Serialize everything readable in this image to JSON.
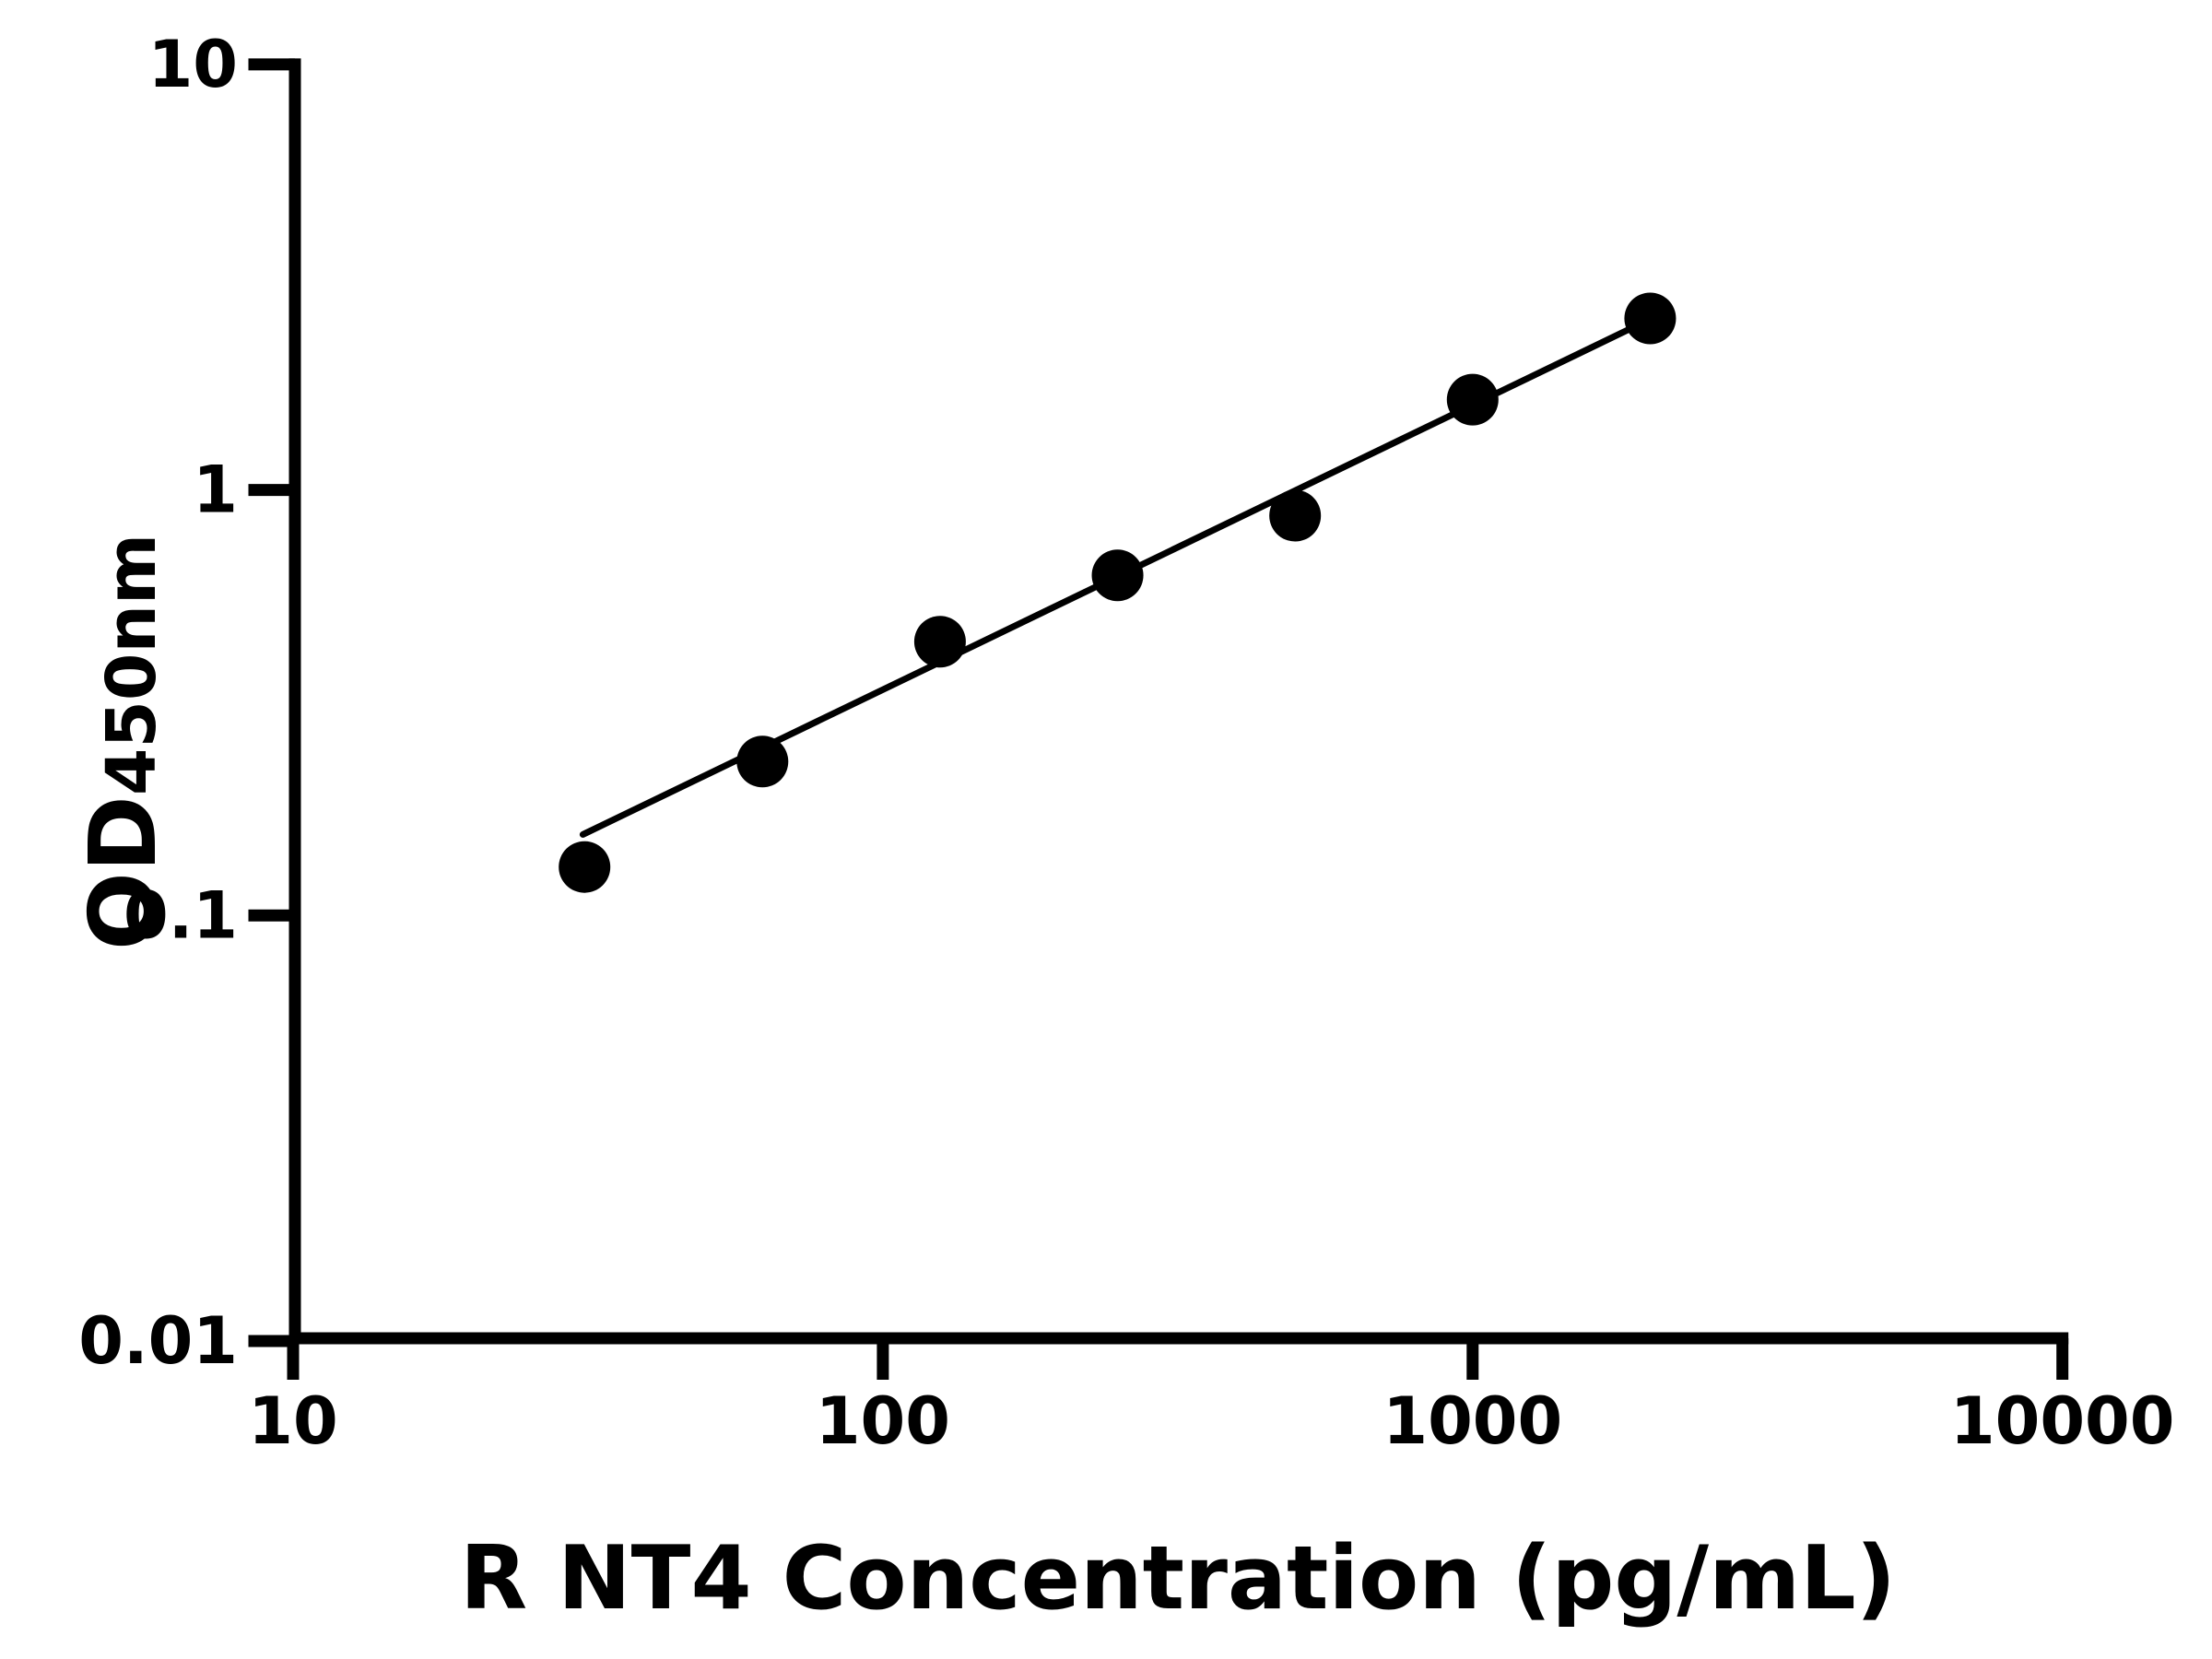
{
  "figure": {
    "background_color": "#ffffff",
    "foreground_color": "#000000"
  },
  "chart_data": {
    "type": "scatter",
    "title": "",
    "xlabel": "R NT4 Concentration (pg/mL)",
    "ylabel": "OD",
    "ylabel_sub": "450nm",
    "x_scale": "log",
    "y_scale": "log",
    "xlim": [
      10,
      10000
    ],
    "ylim": [
      0.01,
      10
    ],
    "grid": false,
    "legend": "none",
    "x_ticks": [
      {
        "value": 10,
        "label": "10"
      },
      {
        "value": 100,
        "label": "100"
      },
      {
        "value": 1000,
        "label": "1000"
      },
      {
        "value": 10000,
        "label": "10000"
      }
    ],
    "y_ticks": [
      {
        "value": 10,
        "label": "10"
      },
      {
        "value": 1,
        "label": "1"
      },
      {
        "value": 0.1,
        "label": "0.1"
      },
      {
        "value": 0.01,
        "label": "0.01"
      }
    ],
    "series": [
      {
        "name": "standard-curve-points",
        "marker": "filled-circle",
        "color": "#000000",
        "points": [
          {
            "x": 31.2,
            "y": 0.13
          },
          {
            "x": 62.5,
            "y": 0.23
          },
          {
            "x": 125,
            "y": 0.44
          },
          {
            "x": 250,
            "y": 0.63
          },
          {
            "x": 500,
            "y": 0.87
          },
          {
            "x": 1000,
            "y": 1.63
          },
          {
            "x": 2000,
            "y": 2.53
          }
        ]
      }
    ],
    "trendline": {
      "name": "linear-fit-line",
      "color": "#000000",
      "x1": 31.0,
      "y1": 0.155,
      "x2": 2000,
      "y2": 2.52
    }
  }
}
